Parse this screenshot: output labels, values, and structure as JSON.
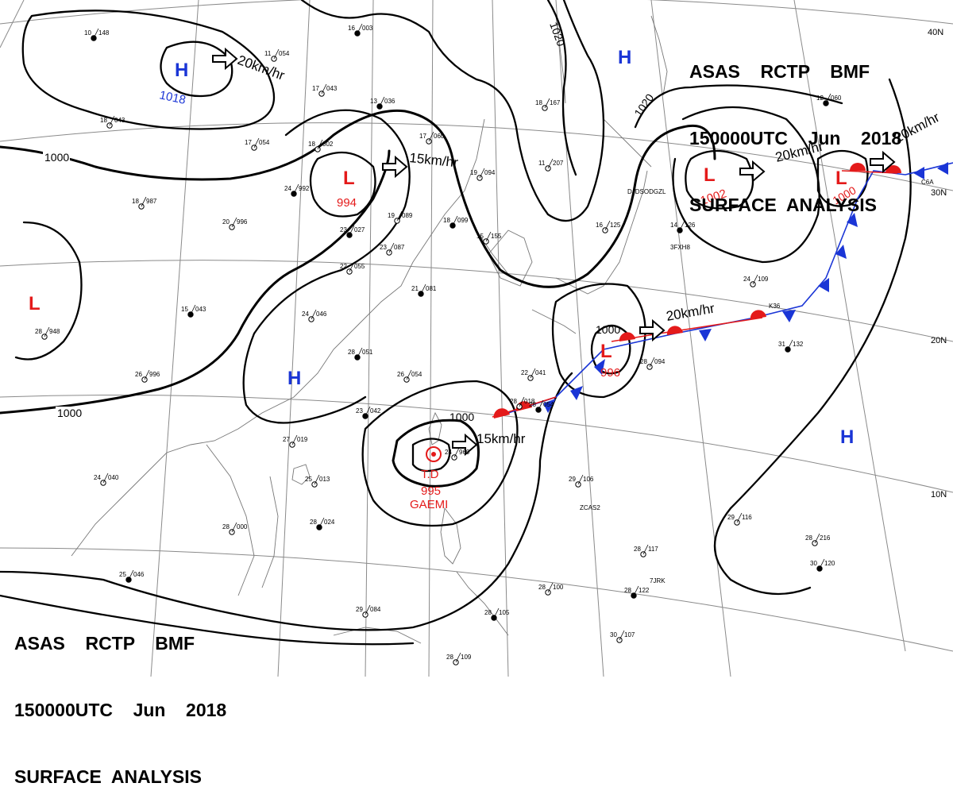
{
  "header": {
    "line1": "ASAS    RCTP    BMF",
    "line2": "150000UTC    Jun    2018",
    "line3": "SURFACE  ANALYSIS"
  },
  "colors": {
    "high": "#1a35d6",
    "low": "#e41a1a",
    "isobar": "#000000",
    "grid": "#8a8a8a"
  },
  "pressure_centers": [
    {
      "type": "H",
      "value": "1018",
      "color": "#1a35d6"
    },
    {
      "type": "L",
      "value": "994",
      "color": "#e41a1a"
    },
    {
      "type": "L",
      "value": "1002",
      "color": "#e41a1a"
    },
    {
      "type": "L",
      "value": "1000",
      "color": "#e41a1a"
    },
    {
      "type": "L",
      "value": "996",
      "color": "#e41a1a"
    },
    {
      "type": "L",
      "value": "",
      "color": "#e41a1a"
    },
    {
      "type": "H",
      "value": "",
      "color": "#1a35d6"
    },
    {
      "type": "H",
      "value": "",
      "color": "#1a35d6"
    },
    {
      "type": "H",
      "value": "",
      "color": "#1a35d6"
    }
  ],
  "tropical_depression": {
    "label": "T.D",
    "pressure": "995",
    "name": "GAEMI"
  },
  "isobar_labels": [
    "1000",
    "1000",
    "1000",
    "1020",
    "1020",
    "1000"
  ],
  "motion_labels": [
    "20km/hr",
    "15km/hr",
    "20km/hr",
    "20km/hr",
    "20km/hr",
    "15km/hr"
  ],
  "latitude_labels": [
    "40N",
    "30N",
    "20N",
    "10N"
  ],
  "station_obs": [
    {
      "t": "16",
      "p": "003"
    },
    {
      "t": "11",
      "p": "054"
    },
    {
      "t": "17",
      "p": "043"
    },
    {
      "t": "13",
      "p": "036"
    },
    {
      "t": "17",
      "p": "054"
    },
    {
      "t": "18",
      "p": "002"
    },
    {
      "t": "24",
      "p": "992"
    },
    {
      "t": "18",
      "p": "987"
    },
    {
      "t": "20",
      "p": "996"
    },
    {
      "t": "23",
      "p": "027"
    },
    {
      "t": "22",
      "p": "055"
    },
    {
      "t": "24",
      "p": "046"
    },
    {
      "t": "15",
      "p": "043"
    },
    {
      "t": "28",
      "p": "948"
    },
    {
      "t": "26",
      "p": "996"
    },
    {
      "t": "28",
      "p": "051"
    },
    {
      "t": "26",
      "p": "054"
    },
    {
      "t": "22",
      "p": "041"
    },
    {
      "t": "23",
      "p": "042"
    },
    {
      "t": "27",
      "p": "019"
    },
    {
      "t": "25",
      "p": "013"
    },
    {
      "t": "28",
      "p": "024"
    },
    {
      "t": "28",
      "p": "000"
    },
    {
      "t": "24",
      "p": "040"
    },
    {
      "t": "25",
      "p": "046"
    },
    {
      "t": "29",
      "p": "084"
    },
    {
      "t": "19",
      "p": "094"
    },
    {
      "t": "18",
      "p": "099"
    },
    {
      "t": "19",
      "p": "089"
    },
    {
      "t": "23",
      "p": "087"
    },
    {
      "t": "21",
      "p": "081"
    },
    {
      "t": "15",
      "p": "155"
    },
    {
      "t": "16",
      "p": "125"
    },
    {
      "t": "14",
      "p": "126"
    },
    {
      "t": "24",
      "p": "109"
    },
    {
      "t": "28",
      "p": "094"
    },
    {
      "t": "31",
      "p": "132"
    },
    {
      "t": "29",
      "p": "106"
    },
    {
      "t": "28",
      "p": "117"
    },
    {
      "t": "28",
      "p": "122"
    },
    {
      "t": "30",
      "p": "107"
    },
    {
      "t": "28",
      "p": "216"
    },
    {
      "t": "30",
      "p": "120"
    },
    {
      "t": "29",
      "p": "116"
    },
    {
      "t": "28",
      "p": "100"
    },
    {
      "t": "12",
      "p": "060"
    },
    {
      "t": "18",
      "p": "167"
    },
    {
      "t": "11",
      "p": "207"
    },
    {
      "t": "28",
      "p": "054"
    },
    {
      "t": "28",
      "p": "018"
    },
    {
      "t": "24",
      "p": "969"
    },
    {
      "t": "28",
      "p": "105"
    },
    {
      "t": "28",
      "p": "109"
    },
    {
      "t": "17",
      "p": "060"
    },
    {
      "t": "10",
      "p": "148"
    },
    {
      "t": "18",
      "p": "043"
    }
  ],
  "ship_callsigns": [
    "DJDSODGZL",
    "3FXH8",
    "K36",
    "ZCAS2",
    "7JRK",
    "C6A"
  ]
}
